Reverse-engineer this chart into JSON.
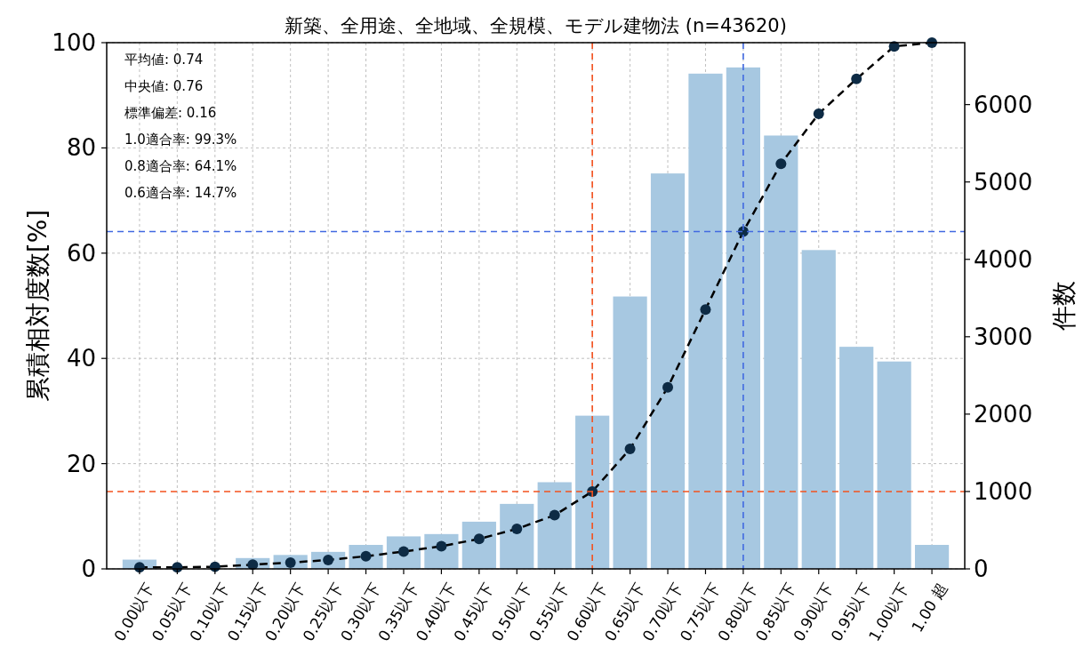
{
  "chart_data": {
    "type": "bar",
    "title": "新築、全用途、全地域、全規模、モデル建物法 (n=43620)",
    "ylabel": "累積相対度数[%]",
    "y2label": "件数",
    "categories": [
      "0.00以下",
      "0.05以下",
      "0.10以下",
      "0.15以下",
      "0.20以下",
      "0.25以下",
      "0.30以下",
      "0.35以下",
      "0.40以下",
      "0.45以下",
      "0.50以下",
      "0.55以下",
      "0.60以下",
      "0.65以下",
      "0.70以下",
      "0.75以下",
      "0.80以下",
      "0.85以下",
      "0.90以下",
      "0.95以下",
      "1.00以下",
      "1.00 超"
    ],
    "series": [
      {
        "axis": "y2",
        "color": "#a7c8e1",
        "values": [
          120,
          null,
          null,
          140,
          180,
          220,
          310,
          420,
          450,
          610,
          840,
          1120,
          1980,
          3520,
          5110,
          6400,
          6480,
          5600,
          4120,
          2870,
          2680,
          310
        ]
      },
      {
        "type": "line",
        "axis": "y",
        "color": "#0d2b45",
        "marker": "circle",
        "line_style": "dashed",
        "values": [
          0.3,
          0.3,
          0.4,
          0.8,
          1.2,
          1.7,
          2.4,
          3.3,
          4.3,
          5.7,
          7.6,
          10.2,
          14.7,
          22.8,
          34.5,
          49.3,
          64.1,
          77.0,
          86.5,
          93.1,
          99.3,
          100
        ]
      }
    ],
    "ylim": [
      0,
      100
    ],
    "yticks": [
      0,
      20,
      40,
      60,
      80,
      100
    ],
    "y2lim": [
      0,
      6800
    ],
    "y2ticks": [
      0,
      1000,
      2000,
      3000,
      4000,
      5000,
      6000
    ],
    "ref_lines": [
      {
        "axis": "y",
        "value": 64.1,
        "color": "#4169e1",
        "line_style": "dashed"
      },
      {
        "axis": "y",
        "value": 14.7,
        "color": "#f4511e",
        "line_style": "dashed"
      },
      {
        "axis": "x",
        "value": "0.60以下",
        "color": "#f4511e",
        "line_style": "dashed"
      },
      {
        "axis": "x",
        "value": "0.80以下",
        "color": "#4169e1",
        "line_style": "dashed"
      }
    ],
    "annotations": [
      "平均値: 0.74",
      "中央値: 0.76",
      "標準偏差: 0.16",
      "1.0適合率: 99.3%",
      "0.8適合率: 64.1%",
      "0.6適合率: 14.7%"
    ],
    "grid": true
  }
}
